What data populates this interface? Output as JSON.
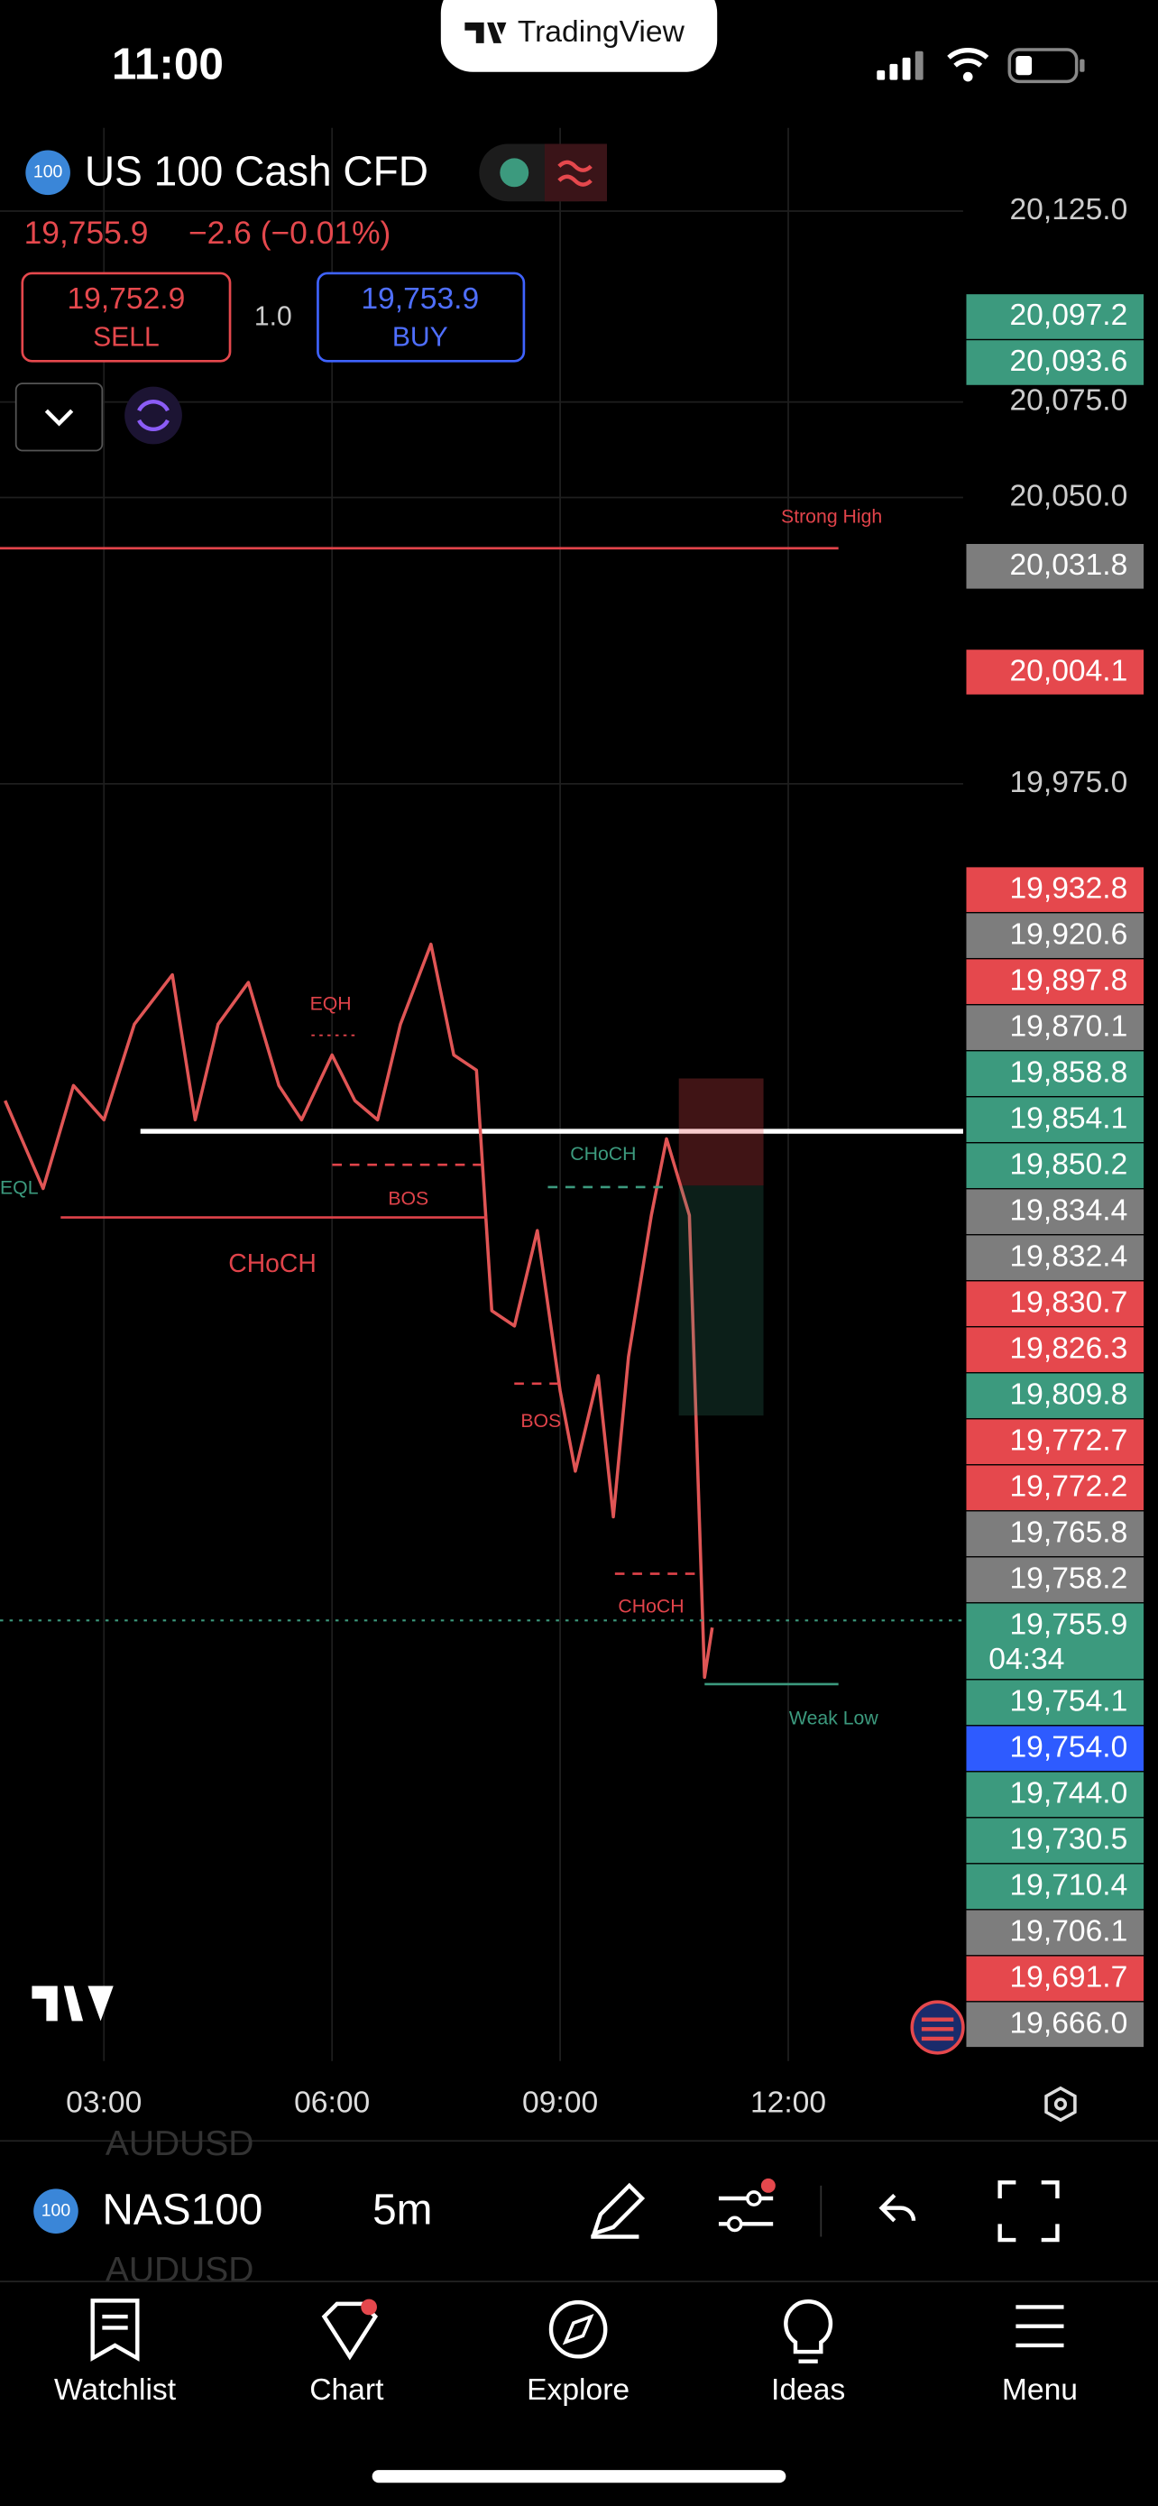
{
  "status_bar": {
    "time": "11:00"
  },
  "banner": {
    "title": "TradingView"
  },
  "header": {
    "badge": "100",
    "symbol": "US 100 Cash CFD",
    "price": "19,755.9",
    "change": "−2.6 (−0.01%)"
  },
  "trade": {
    "sell_price": "19,752.9",
    "sell_label": "SELL",
    "quantity": "1.0",
    "buy_price": "19,753.9",
    "buy_label": "BUY"
  },
  "chart_data": {
    "type": "line",
    "color": "#e05555",
    "x": [
      1.7,
      2.2,
      2.6,
      3.0,
      3.4,
      3.9,
      4.2,
      4.5,
      4.9,
      5.3,
      5.6,
      6.0,
      6.3,
      6.6,
      6.9,
      7.3,
      7.6,
      7.9,
      8.1,
      8.4,
      8.7,
      9.0,
      9.2,
      9.5,
      9.7,
      9.9,
      10.2,
      10.4,
      10.7,
      10.9,
      11.0
    ],
    "values": [
      19892,
      19869,
      19896,
      19887,
      19912,
      19925,
      19887,
      19912,
      19923,
      19896,
      19887,
      19904,
      19892,
      19887,
      19912,
      19933,
      19904,
      19900,
      19837,
      19833,
      19858,
      19816,
      19795,
      19820,
      19783,
      19825,
      19862,
      19882,
      19862,
      19741,
      19754
    ],
    "xlim": [
      1.633,
      14.3
    ],
    "ylim": [
      19640.5,
      20146.8
    ],
    "xticks": [
      {
        "value": 3,
        "label": "03:00"
      },
      {
        "value": 6,
        "label": "06:00"
      },
      {
        "value": 9,
        "label": "09:00"
      },
      {
        "value": 12,
        "label": "12:00"
      }
    ],
    "yticks": [
      {
        "value": 20125,
        "label": "20,125.0"
      },
      {
        "value": 20075,
        "label": "20,075.0"
      },
      {
        "value": 20050,
        "label": "20,050.0"
      },
      {
        "value": 19975,
        "label": "19,975.0"
      }
    ],
    "grid": true,
    "levels": [
      {
        "value": 20036.7,
        "x_from": 1.633,
        "x_to": 12.66,
        "color": "#e0434a"
      },
      {
        "value": 19884,
        "x_from": 3.48,
        "x_to": 14.3,
        "color": "#ffffff"
      },
      {
        "value": 19739.2,
        "x_from": 10.9,
        "x_to": 12.66,
        "color": "#3c9a7e"
      }
    ],
    "annotations": [
      "Strong High",
      "EQH",
      "EQL",
      "BOS",
      "CHoCH",
      "CHoCH",
      "BOS",
      "CHoCH",
      "Weak Low"
    ],
    "price_tags": [
      {
        "value": 20097.2,
        "label": "20,097.2",
        "color": "#3c9a7e"
      },
      {
        "value": 20093.6,
        "label": "20,093.6",
        "color": "#3c9a7e"
      },
      {
        "value": 20031.8,
        "label": "20,031.8",
        "color": "#7d7d7d"
      },
      {
        "value": 20004.1,
        "label": "20,004.1",
        "color": "#e5484d"
      },
      {
        "value": 19932.8,
        "label": "19,932.8",
        "color": "#e5484d"
      },
      {
        "value": 19920.6,
        "label": "19,920.6",
        "color": "#7d7d7d"
      },
      {
        "value": 19897.8,
        "label": "19,897.8",
        "color": "#e5484d"
      },
      {
        "value": 19870.1,
        "label": "19,870.1",
        "color": "#7d7d7d"
      },
      {
        "value": 19858.8,
        "label": "19,858.8",
        "color": "#3c9a7e"
      },
      {
        "value": 19854.1,
        "label": "19,854.1",
        "color": "#3c9a7e"
      },
      {
        "value": 19850.2,
        "label": "19,850.2",
        "color": "#3c9a7e"
      },
      {
        "value": 19834.4,
        "label": "19,834.4",
        "color": "#7d7d7d"
      },
      {
        "value": 19832.4,
        "label": "19,832.4",
        "color": "#7d7d7d"
      },
      {
        "value": 19830.7,
        "label": "19,830.7",
        "color": "#e5484d"
      },
      {
        "value": 19826.3,
        "label": "19,826.3",
        "color": "#e5484d"
      },
      {
        "value": 19809.8,
        "label": "19,809.8",
        "color": "#3c9a7e"
      },
      {
        "value": 19772.7,
        "label": "19,772.7",
        "color": "#e5484d"
      },
      {
        "value": 19772.2,
        "label": "19,772.2",
        "color": "#e5484d"
      },
      {
        "value": 19765.8,
        "label": "19,765.8",
        "color": "#7d7d7d"
      },
      {
        "value": 19758.2,
        "label": "19,758.2",
        "color": "#7d7d7d"
      },
      {
        "value": 19755.9,
        "label": "19,755.9",
        "color": "#3c9a7e",
        "countdown": "04:34"
      },
      {
        "value": 19754.1,
        "label": "19,754.1",
        "color": "#3c9a7e"
      },
      {
        "value": 19754.0,
        "label": "19,754.0",
        "color": "#2e5bff"
      },
      {
        "value": 19744.0,
        "label": "19,744.0",
        "color": "#3c9a7e"
      },
      {
        "value": 19730.5,
        "label": "19,730.5",
        "color": "#3c9a7e"
      },
      {
        "value": 19710.4,
        "label": "19,710.4",
        "color": "#3c9a7e"
      },
      {
        "value": 19706.1,
        "label": "19,706.1",
        "color": "#7d7d7d"
      },
      {
        "value": 19691.7,
        "label": "19,691.7",
        "color": "#e5484d"
      },
      {
        "value": 19666.0,
        "label": "19,666.0",
        "color": "#7d7d7d"
      }
    ]
  },
  "toolbar": {
    "ghost_top": "AUDUSD",
    "badge": "100",
    "symbol": "NAS100",
    "interval": "5m",
    "ghost_bottom": "AUDUSD"
  },
  "tabs": [
    {
      "label": "Watchlist"
    },
    {
      "label": "Chart"
    },
    {
      "label": "Explore"
    },
    {
      "label": "Ideas"
    },
    {
      "label": "Menu"
    }
  ]
}
